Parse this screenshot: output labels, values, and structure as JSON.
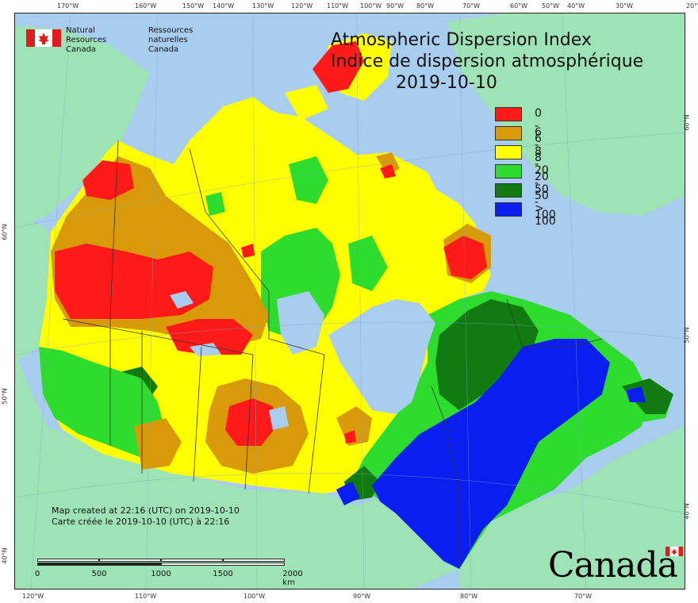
{
  "header": {
    "agency_en_line1": "Natural Resources",
    "agency_en_line2": "Canada",
    "agency_fr_line1": "Ressources naturelles",
    "agency_fr_line2": "Canada"
  },
  "title": {
    "en": "Atmospheric Dispersion Index",
    "fr": "Indice de dispersion atmosphérique",
    "date": "2019-10-10"
  },
  "legend": [
    {
      "label": "0 - 6",
      "color": "#ff1a1a"
    },
    {
      "label": "6 - 8",
      "color": "#d99a0a"
    },
    {
      "label": "8 - 20",
      "color": "#ffff00"
    },
    {
      "label": "20 - 50",
      "color": "#2ddc2d"
    },
    {
      "label": "50 - 100",
      "color": "#117a11"
    },
    {
      "label": "> 100",
      "color": "#0a1ef0"
    }
  ],
  "credits": {
    "en": "Map created at 22:16 (UTC) on 2019-10-10",
    "fr": "Carte créée le 2019-10-10 (UTC) à 22:16"
  },
  "scalebar": {
    "labels": [
      "0",
      "500",
      "1000",
      "1500",
      "2000 km"
    ]
  },
  "axes": {
    "top": [
      "170°W",
      "160°W",
      "150°W",
      "140°W",
      "130°W",
      "120°W",
      "110°W",
      "100°W",
      "90°W",
      "80°W",
      "70°W",
      "60°W",
      "50°W",
      "40°W",
      "30°W",
      "20°W"
    ],
    "bottom": [
      "120°W",
      "110°W",
      "100°W",
      "90°W",
      "80°W",
      "70°W"
    ],
    "left": [
      "60°N",
      "50°N",
      "40°N"
    ],
    "right": [
      "60°N",
      "50°N",
      "40°N"
    ]
  },
  "wordmark": "Canada",
  "colors": {
    "ocean": "#a9cdee",
    "land": "#9ee3b5"
  }
}
